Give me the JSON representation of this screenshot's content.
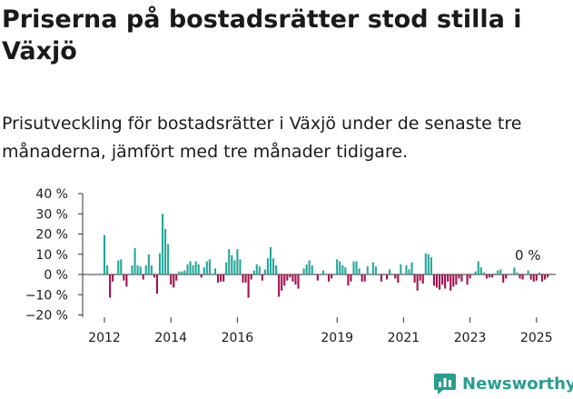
{
  "title": "Priserna på bostadsrätter stod stilla i Växjö",
  "subtitle": "Prisutveckling för bostadsrätter i Växjö under de senaste tre månaderna, jämfört med tre månader tidigare.",
  "brand": {
    "name": "Newsworthy"
  },
  "colors": {
    "positive": "#26a69a",
    "negative": "#a3124f",
    "axis": "#333333",
    "brand": "#2a9d8f"
  },
  "chart_data": {
    "type": "bar",
    "unit": "%",
    "x_start": "2012-01",
    "y_ticks": [
      "40 %",
      "30 %",
      "20 %",
      "10 %",
      "0 %",
      "−10 %",
      "−20 %"
    ],
    "y_tick_values": [
      40,
      30,
      20,
      10,
      0,
      -10,
      -20
    ],
    "ylim": [
      -20,
      40
    ],
    "x_ticks": [
      "2012",
      "2014",
      "2016",
      "2019",
      "2021",
      "2023",
      "2025"
    ],
    "annotation": "0 %",
    "grid": false,
    "values": [
      19.5,
      4.5,
      -11.5,
      -3.5,
      0,
      7,
      7.5,
      -3,
      -6,
      0,
      4.5,
      13,
      4.5,
      4,
      -2.5,
      4.5,
      10,
      4.5,
      -1.5,
      -9.5,
      10.5,
      30,
      22.5,
      15,
      -5,
      -6.5,
      -3,
      1.5,
      1.5,
      2,
      5,
      6.5,
      4.5,
      6.5,
      5,
      -1.5,
      3.5,
      6.5,
      7.5,
      0,
      3,
      -4,
      -3.5,
      -3.5,
      6,
      12.5,
      9.5,
      7,
      12.5,
      7.5,
      -4,
      -4,
      -11.5,
      -2.5,
      2,
      5,
      4,
      -3,
      2.5,
      8,
      13.5,
      8,
      4.5,
      -11,
      -8,
      -5.5,
      -3,
      -1.5,
      -3.5,
      -5,
      -7,
      0,
      3,
      5,
      7,
      4.5,
      0,
      -3,
      0,
      2,
      0,
      -3.5,
      -2,
      0,
      7.5,
      6.5,
      4.5,
      3.5,
      -5.5,
      -3.5,
      6.5,
      6.5,
      3,
      -3.5,
      -3.5,
      4,
      0,
      6,
      4,
      0,
      -3.5,
      0,
      -2.5,
      2.5,
      0,
      -2,
      -4,
      5,
      0,
      4.5,
      2.5,
      6,
      -4,
      -8,
      -3,
      -4.5,
      10.5,
      10,
      8.5,
      -5.5,
      -6.5,
      -7.5,
      -5,
      -7,
      -3.5,
      -8,
      -6,
      -5,
      -2,
      -3.5,
      0,
      -5,
      -2,
      0,
      1.5,
      6.5,
      3.5,
      1,
      -2,
      -1.5,
      -1.5,
      0.5,
      2,
      2.5,
      -4,
      -2,
      0,
      0,
      3.5,
      1,
      -2,
      -2.5,
      0,
      2,
      -2.5,
      -3.5,
      -3,
      1,
      -3.5,
      -2.5,
      -1.5,
      0
    ]
  }
}
